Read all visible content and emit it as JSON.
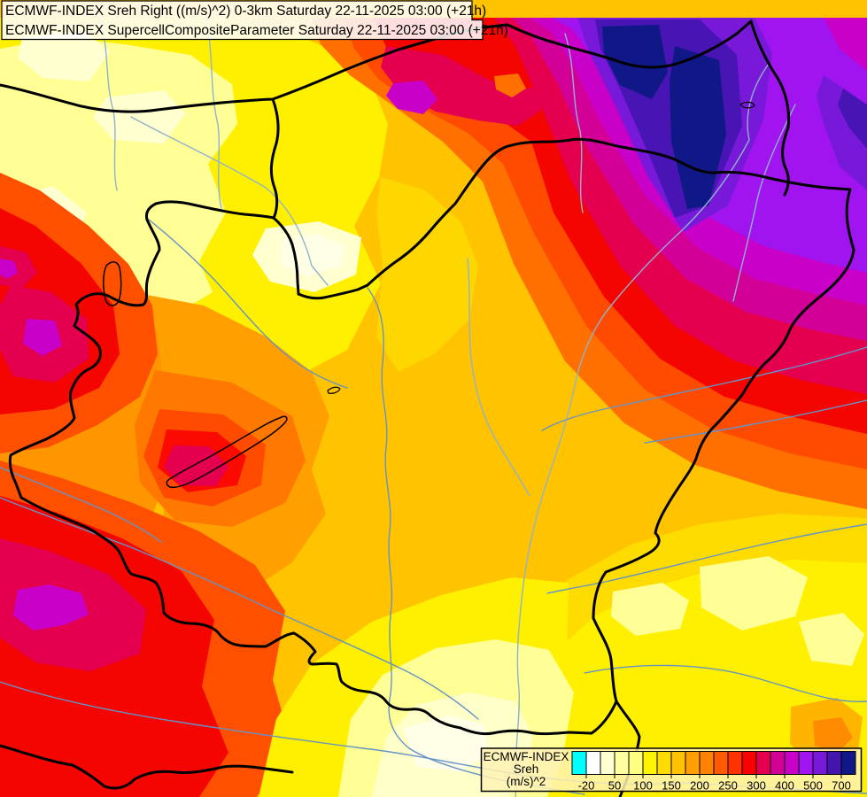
{
  "header": {
    "line1": "ECMWF-INDEX Sreh Right ((m/s)^2) 0-3km Saturday 22-11-2025 03:00 (+21h)",
    "line2": "ECMWF-INDEX SupercellCompositeParameter Saturday 22-11-2025 03:00 (+21h)"
  },
  "legend": {
    "title_lines": [
      "ECMWF-INDEX",
      "Sreh",
      "(m/s)^2"
    ],
    "tick_labels": [
      "-20",
      "50",
      "100",
      "150",
      "200",
      "250",
      "300",
      "400",
      "500",
      "700"
    ],
    "scale_values": [
      -20,
      50,
      100,
      150,
      200,
      250,
      300,
      400,
      500,
      700
    ],
    "colors": [
      "#00FFFF",
      "#FFFFFF",
      "#FFFFD2",
      "#FFFFA0",
      "#FFFF82",
      "#FFF500",
      "#FFDC00",
      "#FFC300",
      "#FFA000",
      "#FF8200",
      "#FF5A00",
      "#FF3200",
      "#FB0000",
      "#E4004E",
      "#D20096",
      "#C800C8",
      "#A014F0",
      "#7818D8",
      "#4314AE",
      "#101888"
    ],
    "background": "#FFF2B4",
    "border_color": "#000000"
  },
  "map": {
    "unit": "(m/s)^2",
    "parameter": "Storm relative helicity 0-3km / Supercell Composite Parameter",
    "accent_border_color": "#000000",
    "river_color": "#6593C6"
  }
}
